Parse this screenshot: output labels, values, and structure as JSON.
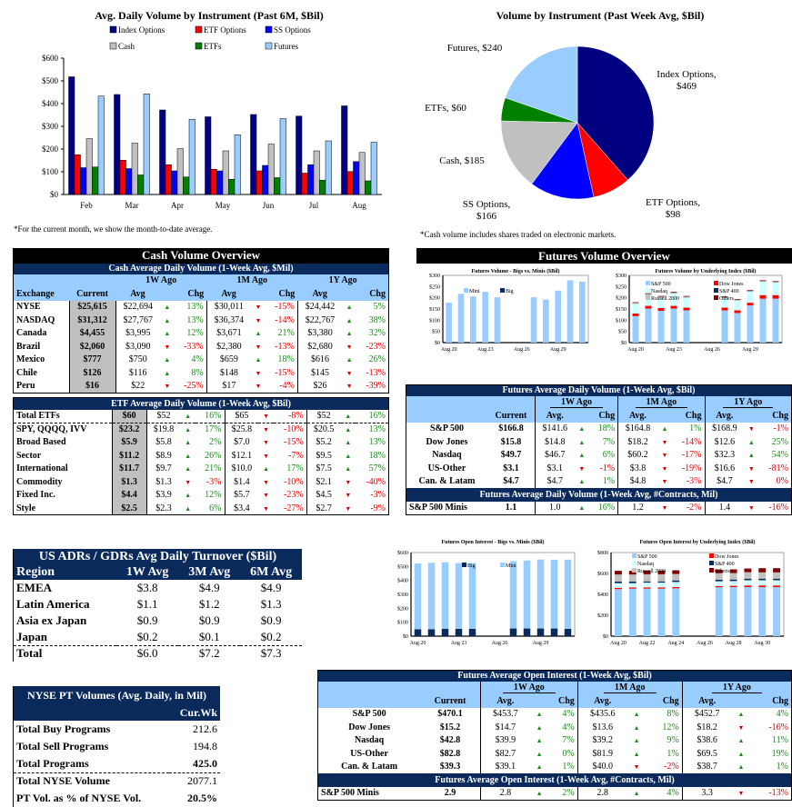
{
  "chart_data": [
    {
      "type": "bar",
      "title": "Avg. Daily Volume by Instrument (Past 6M, $Bil)",
      "xlabel": "",
      "ylabel": "",
      "categories": [
        "Feb",
        "Mar",
        "Apr",
        "May",
        "Jun",
        "Jul",
        "Aug"
      ],
      "ylim": [
        0,
        600
      ],
      "yticks": [
        "$0",
        "$100",
        "$200",
        "$300",
        "$400",
        "$500",
        "$600"
      ],
      "legend_position": "top",
      "series": [
        {
          "name": "Index Options",
          "color": "#000080",
          "values": [
            518,
            440,
            372,
            342,
            352,
            345,
            390
          ]
        },
        {
          "name": "ETF Options",
          "color": "#ff0000",
          "values": [
            175,
            151,
            131,
            111,
            104,
            94,
            101
          ]
        },
        {
          "name": "SS Options",
          "color": "#0000ff",
          "values": [
            118,
            114,
            104,
            104,
            128,
            131,
            145
          ]
        },
        {
          "name": "Cash",
          "color": "#c0c0c0",
          "values": [
            246,
            226,
            202,
            192,
            222,
            192,
            185
          ]
        },
        {
          "name": "ETFs",
          "color": "#008000",
          "values": [
            121,
            86,
            77,
            67,
            74,
            63,
            60
          ]
        },
        {
          "name": "Futures",
          "color": "#99ccff",
          "values": [
            433,
            443,
            331,
            263,
            334,
            236,
            230
          ]
        }
      ],
      "footnote": "*For the current month, we show the month-to-date average."
    },
    {
      "type": "pie",
      "title": "Volume by Instrument (Past Week Avg, $Bil)",
      "slices": [
        {
          "name": "Index Options",
          "value": 469,
          "label": "Index Options, $469",
          "color": "#000080"
        },
        {
          "name": "ETF Options",
          "value": 98,
          "label": "ETF Options, $98",
          "color": "#ff0000"
        },
        {
          "name": "SS Options",
          "value": 166,
          "label": "SS Options, $166",
          "color": "#0000ff"
        },
        {
          "name": "Cash",
          "value": 185,
          "label": "Cash, $185",
          "color": "#c0c0c0"
        },
        {
          "name": "ETFs",
          "value": 60,
          "label": "ETFs, $60",
          "color": "#008000"
        },
        {
          "name": "Futures",
          "value": 240,
          "label": "Futures, $240",
          "color": "#99ccff"
        }
      ],
      "footnote": "*Cash volume includes shares traded on electronic markets."
    },
    {
      "type": "bar",
      "title": "Futures Volume - Bigs vs. Minis ($Bil)",
      "categories": [
        "Aug 20",
        "Aug 21",
        "Aug 22",
        "Aug 23",
        "Aug 24",
        "Aug 25",
        "Aug 26",
        "Aug 27",
        "Aug 28",
        "Aug 29",
        "Aug 30",
        "Aug 31"
      ],
      "xtick_labels": [
        "Aug 20",
        "Aug 23",
        "Aug 26",
        "Aug 29"
      ],
      "ylim": [
        0,
        300
      ],
      "yticks": [
        "$0",
        "$50",
        "$100",
        "$150",
        "$200",
        "$250",
        "$300"
      ],
      "stacked": true,
      "series": [
        {
          "name": "Big",
          "color": "#0b2a5c",
          "values": [
            0,
            0,
            0,
            0,
            0,
            null,
            null,
            0,
            0,
            0,
            0,
            0
          ]
        },
        {
          "name": "Mini",
          "color": "#99ccff",
          "values": [
            178,
            218,
            206,
            226,
            202,
            null,
            null,
            202,
            192,
            232,
            278,
            272
          ]
        }
      ]
    },
    {
      "type": "bar",
      "title": "Futures Volume by Underlying Index ($Bil)",
      "categories": [
        "Aug 20",
        "Aug 21",
        "Aug 22",
        "Aug 23",
        "Aug 24",
        "Aug 25",
        "Aug 26",
        "Aug 27",
        "Aug 28",
        "Aug 29",
        "Aug 30",
        "Aug 31"
      ],
      "xtick_labels": [
        "Aug 20",
        "Aug 23",
        "Aug 26",
        "Aug 29"
      ],
      "ylim": [
        0,
        300
      ],
      "yticks": [
        "$0",
        "$50",
        "$100",
        "$150",
        "$200",
        "$250",
        "$300"
      ],
      "stacked": true,
      "series": [
        {
          "name": "S&P 500",
          "color": "#99ccff",
          "values": [
            118,
            152,
            142,
            152,
            144,
            null,
            null,
            144,
            132,
            166,
            196,
            196
          ]
        },
        {
          "name": "Dow Jones",
          "color": "#ff0000",
          "values": [
            12,
            12,
            12,
            12,
            12,
            null,
            null,
            12,
            12,
            12,
            16,
            16
          ]
        },
        {
          "name": "Nasdaq",
          "color": "#ccffff",
          "values": [
            44,
            50,
            48,
            56,
            46,
            null,
            null,
            44,
            44,
            50,
            60,
            56
          ]
        },
        {
          "name": "S&P 400",
          "color": "#0b2a5c",
          "values": [
            1,
            1,
            1,
            1,
            1,
            null,
            null,
            1,
            1,
            1,
            1,
            1
          ]
        },
        {
          "name": "Russell 2000",
          "color": "#c0c0c0",
          "values": [
            2,
            2,
            2,
            2,
            2,
            null,
            null,
            2,
            2,
            2,
            2,
            2
          ]
        },
        {
          "name": "Others",
          "color": "#800000",
          "values": [
            3,
            3,
            3,
            3,
            3,
            null,
            null,
            3,
            3,
            3,
            3,
            3
          ]
        }
      ]
    },
    {
      "type": "bar",
      "title": "Futures Open Interest - Bigs vs. Minis ($Bil)",
      "categories": [
        "Aug 20",
        "Aug 21",
        "Aug 22",
        "Aug 23",
        "Aug 24",
        "Aug 25",
        "Aug 26",
        "Aug 27",
        "Aug 28",
        "Aug 29",
        "Aug 30",
        "Aug 31"
      ],
      "xtick_labels": [
        "Aug 20",
        "Aug 23",
        "Aug 26",
        "Aug 29"
      ],
      "ylim": [
        0,
        600
      ],
      "yticks": [
        "$0",
        "$100",
        "$200",
        "$300",
        "$400",
        "$500",
        "$600"
      ],
      "stacked": true,
      "series": [
        {
          "name": "Big",
          "color": "#0b2a5c",
          "values": [
            50,
            50,
            52,
            52,
            52,
            null,
            null,
            55,
            55,
            55,
            55,
            52
          ]
        },
        {
          "name": "Mini",
          "color": "#99ccff",
          "values": [
            472,
            476,
            478,
            472,
            473,
            null,
            null,
            483,
            488,
            495,
            493,
            497
          ]
        }
      ]
    },
    {
      "type": "bar",
      "title": "Futures Open Interest by Underlying Index ($Bil)",
      "categories": [
        "Aug 20",
        "Aug 21",
        "Aug 22",
        "Aug 23",
        "Aug 24",
        "Aug 25",
        "Aug 26",
        "Aug 27",
        "Aug 28",
        "Aug 29",
        "Aug 30",
        "Aug 31"
      ],
      "xtick_labels": [
        "Aug 20",
        "Aug 22",
        "Aug 24",
        "Aug 26",
        "Aug 28",
        "Aug 30"
      ],
      "ylim": [
        0,
        800
      ],
      "yticks": [
        "$0",
        "$200",
        "$400",
        "$600",
        "$800"
      ],
      "stacked": true,
      "series": [
        {
          "name": "S&P 500",
          "color": "#99ccff",
          "values": [
            450,
            455,
            455,
            455,
            458,
            null,
            null,
            468,
            470,
            470,
            470,
            470
          ]
        },
        {
          "name": "Dow Jones",
          "color": "#ff0000",
          "values": [
            12,
            12,
            12,
            12,
            12,
            null,
            null,
            12,
            12,
            15,
            15,
            15
          ]
        },
        {
          "name": "Nasdaq",
          "color": "#ccffff",
          "values": [
            45,
            40,
            45,
            45,
            48,
            null,
            null,
            45,
            45,
            50,
            50,
            50
          ]
        },
        {
          "name": "S&P 400",
          "color": "#0b2a5c",
          "values": [
            15,
            15,
            12,
            12,
            15,
            null,
            null,
            15,
            15,
            15,
            15,
            15
          ]
        },
        {
          "name": "Russell 2000",
          "color": "#c0c0c0",
          "values": [
            68,
            68,
            68,
            68,
            62,
            null,
            null,
            62,
            62,
            62,
            60,
            60
          ]
        },
        {
          "name": "Others",
          "color": "#800000",
          "values": [
            35,
            35,
            35,
            35,
            35,
            null,
            null,
            35,
            35,
            35,
            40,
            40
          ]
        }
      ]
    }
  ],
  "cash": {
    "banner": "Cash Volume Overview",
    "subtitle": "Cash Average Daily Volume (1-Week Avg, $Mil)",
    "groups": [
      "1W Ago",
      "1M Ago",
      "1Y Ago"
    ],
    "headers": [
      "Exchange",
      "Current",
      "Avg",
      "Chg",
      "Avg",
      "Chg",
      "Avg",
      "Chg"
    ],
    "rows": [
      {
        "name": "NYSE",
        "cur": "$25,615",
        "a1": "$22,694",
        "c1": "13%",
        "d1": "up",
        "a2": "$30,011",
        "c2": "-15%",
        "d2": "dn",
        "a3": "$24,442",
        "c3": "5%",
        "d3": "up"
      },
      {
        "name": "NASDAQ",
        "cur": "$31,312",
        "a1": "$27,767",
        "c1": "13%",
        "d1": "up",
        "a2": "$36,374",
        "c2": "-14%",
        "d2": "dn",
        "a3": "$22,767",
        "c3": "38%",
        "d3": "up"
      },
      {
        "name": "Canada",
        "cur": "$4,455",
        "a1": "$3,995",
        "c1": "12%",
        "d1": "up",
        "a2": "$3,671",
        "c2": "21%",
        "d2": "up",
        "a3": "$3,380",
        "c3": "32%",
        "d3": "up"
      },
      {
        "name": "Brazil",
        "cur": "$2,060",
        "a1": "$3,090",
        "c1": "-33%",
        "d1": "dn",
        "a2": "$2,380",
        "c2": "-13%",
        "d2": "dn",
        "a3": "$2,680",
        "c3": "-23%",
        "d3": "dn"
      },
      {
        "name": "Mexico",
        "cur": "$777",
        "a1": "$750",
        "c1": "4%",
        "d1": "up",
        "a2": "$659",
        "c2": "18%",
        "d2": "up",
        "a3": "$616",
        "c3": "26%",
        "d3": "up"
      },
      {
        "name": "Chile",
        "cur": "$126",
        "a1": "$116",
        "c1": "8%",
        "d1": "up",
        "a2": "$148",
        "c2": "-15%",
        "d2": "dn",
        "a3": "$145",
        "c3": "-13%",
        "d3": "dn"
      },
      {
        "name": "Peru",
        "cur": "$16",
        "a1": "$22",
        "c1": "-25%",
        "d1": "dn",
        "a2": "$17",
        "c2": "-4%",
        "d2": "dn",
        "a3": "$26",
        "c3": "-39%",
        "d3": "dn"
      }
    ]
  },
  "etf": {
    "subtitle": "ETF Average Daily Volume (1-Week Avg, $Bil)",
    "rows": [
      {
        "name": "Total ETFs",
        "cur": "$60",
        "a1": "$52",
        "c1": "16%",
        "d1": "up",
        "a2": "$65",
        "c2": "-8%",
        "d2": "dn",
        "a3": "$52",
        "c3": "16%",
        "d3": "up"
      },
      {
        "name": "SPY, QQQQ, IVV",
        "cur": "$23.2",
        "a1": "$19.8",
        "c1": "17%",
        "d1": "up",
        "a2": "$25.8",
        "c2": "-10%",
        "d2": "dn",
        "a3": "$20.5",
        "c3": "13%",
        "d3": "up"
      },
      {
        "name": "Broad Based",
        "cur": "$5.9",
        "a1": "$5.8",
        "c1": "2%",
        "d1": "up",
        "a2": "$7.0",
        "c2": "-15%",
        "d2": "dn",
        "a3": "$5.2",
        "c3": "13%",
        "d3": "up"
      },
      {
        "name": "Sector",
        "cur": "$11.2",
        "a1": "$8.9",
        "c1": "26%",
        "d1": "up",
        "a2": "$12.1",
        "c2": "-7%",
        "d2": "dn",
        "a3": "$9.5",
        "c3": "18%",
        "d3": "up"
      },
      {
        "name": "International",
        "cur": "$11.7",
        "a1": "$9.7",
        "c1": "21%",
        "d1": "up",
        "a2": "$10.0",
        "c2": "17%",
        "d2": "up",
        "a3": "$7.5",
        "c3": "57%",
        "d3": "up"
      },
      {
        "name": "Commodity",
        "cur": "$1.3",
        "a1": "$1.3",
        "c1": "-3%",
        "d1": "dn",
        "a2": "$1.4",
        "c2": "-10%",
        "d2": "dn",
        "a3": "$2.1",
        "c3": "-40%",
        "d3": "dn"
      },
      {
        "name": "Fixed Inc.",
        "cur": "$4.4",
        "a1": "$3.9",
        "c1": "12%",
        "d1": "up",
        "a2": "$5.7",
        "c2": "-23%",
        "d2": "dn",
        "a3": "$4.5",
        "c3": "-3%",
        "d3": "dn"
      },
      {
        "name": "Style",
        "cur": "$2.5",
        "a1": "$2.3",
        "c1": "6%",
        "d1": "up",
        "a2": "$3.4",
        "c2": "-27%",
        "d2": "dn",
        "a3": "$2.7",
        "c3": "-9%",
        "d3": "dn"
      }
    ]
  },
  "adr": {
    "title": "US ADRs / GDRs Avg Daily Turnover ($Bil)",
    "headers": [
      "Region",
      "1W Avg",
      "3M Avg",
      "6M Avg"
    ],
    "rows": [
      [
        "EMEA",
        "$3.8",
        "$4.9",
        "$4.9"
      ],
      [
        "Latin America",
        "$1.1",
        "$1.2",
        "$1.3"
      ],
      [
        "Asia ex Japan",
        "$0.9",
        "$0.9",
        "$0.9"
      ],
      [
        "Japan",
        "$0.2",
        "$0.1",
        "$0.2"
      ]
    ],
    "total": [
      "Total",
      "$6.0",
      "$7.2",
      "$7.3"
    ]
  },
  "nyse_pt": {
    "title": "NYSE PT Volumes (Avg. Daily, in Mil)",
    "col": "Cur.Wk",
    "rows": [
      [
        "Total Buy Programs",
        "212.6"
      ],
      [
        "Total Sell Programs",
        "194.8"
      ],
      [
        "Total Programs",
        "425.0"
      ],
      [
        "Total NYSE Volume",
        "2077.1"
      ],
      [
        "PT Vol. as %  of NYSE Vol.",
        "20.5%"
      ]
    ]
  },
  "futures": {
    "banner": "Futures Volume Overview",
    "vol_title": "Futures Average Daily Volume (1-Week Avg, $Bil)",
    "vol_minis_title": "Futures Average Daily Volume (1-Week Avg, #Contracts, Mil)",
    "oi_title": "Futures Average Open Interest (1-Week Avg, $Bil)",
    "oi_minis_title": "Futures Average Open Interest (1-Week Avg, #Contracts, Mil)",
    "groups": [
      "1W Ago",
      "1M Ago",
      "1Y Ago"
    ],
    "headers": [
      "Current",
      "Avg.",
      "Chg",
      "Avg.",
      "Chg",
      "Avg.",
      "Chg"
    ],
    "vol_rows": [
      {
        "name": "S&P 500",
        "cur": "$166.8",
        "a1": "$141.6",
        "c1": "18%",
        "d1": "up",
        "a2": "$164.8",
        "c2": "1%",
        "d2": "up",
        "a3": "$168.9",
        "c3": "-1%",
        "d3": "dn"
      },
      {
        "name": "Dow Jones",
        "cur": "$15.8",
        "a1": "$14.8",
        "c1": "7%",
        "d1": "up",
        "a2": "$18.2",
        "c2": "-14%",
        "d2": "dn",
        "a3": "$12.6",
        "c3": "25%",
        "d3": "up"
      },
      {
        "name": "Nasdaq",
        "cur": "$49.7",
        "a1": "$46.7",
        "c1": "6%",
        "d1": "up",
        "a2": "$60.2",
        "c2": "-17%",
        "d2": "dn",
        "a3": "$32.3",
        "c3": "54%",
        "d3": "up"
      },
      {
        "name": "US-Other",
        "cur": "$3.1",
        "a1": "$3.1",
        "c1": "-1%",
        "d1": "dn",
        "a2": "$3.8",
        "c2": "-19%",
        "d2": "dn",
        "a3": "$16.6",
        "c3": "-81%",
        "d3": "dn"
      },
      {
        "name": "Can. & Latam",
        "cur": "$4.7",
        "a1": "$4.7",
        "c1": "1%",
        "d1": "up",
        "a2": "$4.8",
        "c2": "-3%",
        "d2": "dn",
        "a3": "$4.7",
        "c3": "0%",
        "d3": "dn"
      }
    ],
    "vol_minis": {
      "name": "S&P 500 Minis",
      "cur": "1.1",
      "a1": "1.0",
      "c1": "16%",
      "d1": "up",
      "a2": "1.2",
      "c2": "-2%",
      "d2": "dn",
      "a3": "1.4",
      "c3": "-16%",
      "d3": "dn"
    },
    "oi_rows": [
      {
        "name": "S&P 500",
        "cur": "$470.1",
        "a1": "$453.7",
        "c1": "4%",
        "d1": "up",
        "a2": "$435.6",
        "c2": "8%",
        "d2": "up",
        "a3": "$452.7",
        "c3": "4%",
        "d3": "up"
      },
      {
        "name": "Dow Jones",
        "cur": "$15.2",
        "a1": "$14.7",
        "c1": "4%",
        "d1": "up",
        "a2": "$13.6",
        "c2": "12%",
        "d2": "up",
        "a3": "$18.2",
        "c3": "-16%",
        "d3": "dn"
      },
      {
        "name": "Nasdaq",
        "cur": "$42.8",
        "a1": "$39.9",
        "c1": "7%",
        "d1": "up",
        "a2": "$39.2",
        "c2": "9%",
        "d2": "up",
        "a3": "$38.6",
        "c3": "11%",
        "d3": "up"
      },
      {
        "name": "US-Other",
        "cur": "$82.8",
        "a1": "$82.7",
        "c1": "0%",
        "d1": "up",
        "a2": "$81.9",
        "c2": "1%",
        "d2": "up",
        "a3": "$69.5",
        "c3": "19%",
        "d3": "up"
      },
      {
        "name": "Can. & Latam",
        "cur": "$39.3",
        "a1": "$39.1",
        "c1": "1%",
        "d1": "up",
        "a2": "$40.0",
        "c2": "-2%",
        "d2": "dn",
        "a3": "$38.7",
        "c3": "1%",
        "d3": "up"
      }
    ],
    "oi_minis": {
      "name": "S&P 500 Minis",
      "cur": "2.9",
      "a1": "2.8",
      "c1": "2%",
      "d1": "up",
      "a2": "2.8",
      "c2": "4%",
      "d2": "up",
      "a3": "3.3",
      "c3": "-13%",
      "d3": "dn"
    }
  }
}
